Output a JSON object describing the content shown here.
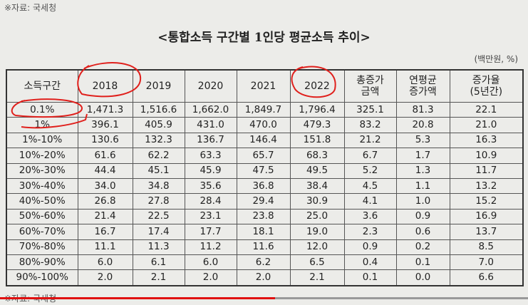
{
  "source_top": "※자료: 국세청",
  "title": "<통합소득 구간별 1인당 평균소득 추이>",
  "unit": "(백만원, %)",
  "table": {
    "header": [
      "소득구간",
      "2018",
      "2019",
      "2020",
      "2021",
      "2022",
      [
        "총증가",
        "금액"
      ],
      [
        "연평균",
        "증가액"
      ],
      [
        "증가율",
        "(5년간)"
      ]
    ],
    "rows": [
      [
        "0.1%",
        "1,471.3",
        "1,516.6",
        "1,662.0",
        "1,849.7",
        "1,796.4",
        "325.1",
        "81.3",
        "22.1"
      ],
      [
        "1%",
        "396.1",
        "405.9",
        "431.0",
        "470.0",
        "479.3",
        "83.2",
        "20.8",
        "21.0"
      ],
      [
        "1%-10%",
        "130.6",
        "132.3",
        "136.7",
        "146.4",
        "151.8",
        "21.2",
        "5.3",
        "16.3"
      ],
      [
        "10%-20%",
        "61.6",
        "62.2",
        "63.3",
        "65.7",
        "68.3",
        "6.7",
        "1.7",
        "10.9"
      ],
      [
        "20%-30%",
        "44.4",
        "45.1",
        "45.9",
        "47.5",
        "49.5",
        "5.2",
        "1.3",
        "11.7"
      ],
      [
        "30%-40%",
        "34.0",
        "34.8",
        "35.6",
        "36.8",
        "38.4",
        "4.5",
        "1.1",
        "13.2"
      ],
      [
        "40%-50%",
        "26.8",
        "27.8",
        "28.4",
        "29.4",
        "30.9",
        "4.1",
        "1.0",
        "15.2"
      ],
      [
        "50%-60%",
        "21.4",
        "22.5",
        "23.1",
        "23.8",
        "25.0",
        "3.6",
        "0.9",
        "16.9"
      ],
      [
        "60%-70%",
        "16.7",
        "17.4",
        "17.7",
        "18.1",
        "19.0",
        "2.3",
        "0.6",
        "13.7"
      ],
      [
        "70%-80%",
        "11.1",
        "11.3",
        "11.2",
        "11.6",
        "12.0",
        "0.9",
        "0.2",
        "8.5"
      ],
      [
        "80%-90%",
        "6.0",
        "6.1",
        "6.0",
        "6.2",
        "6.5",
        "0.4",
        "0.1",
        "7.0"
      ],
      [
        "90%-100%",
        "2.0",
        "2.1",
        "2.0",
        "2.0",
        "2.1",
        "0.1",
        "0.0",
        "6.6"
      ]
    ]
  },
  "source_bottom": "※자료: 국세청"
}
